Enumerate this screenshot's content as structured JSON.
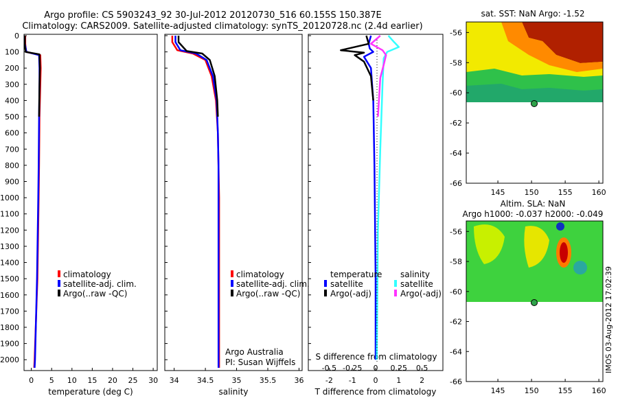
{
  "chart_data": {
    "type": "line",
    "title": "Argo profile: CS 5903243_92 30-Jul-2012 20120730_516 60.155S 150.387E",
    "subtitle": "Climatology: CARS2009. Satellite-adjusted climatology: synTS_20120728.nc (2.4d earlier)",
    "ylabel": "",
    "depth_ticks": [
      0,
      100,
      200,
      300,
      400,
      500,
      600,
      700,
      800,
      900,
      1000,
      1100,
      1200,
      1300,
      1400,
      1500,
      1600,
      1700,
      1800,
      1900,
      2000
    ],
    "ylim": [
      0,
      2050
    ],
    "legend": [
      "climatology",
      "satellite-adj. clim.",
      "Argo(..raw -QC)"
    ],
    "diff_legend": {
      "temp_heading": "temperature",
      "sal_heading": "salinity",
      "t_sat": "satellite",
      "t_argo": "Argo(-adj)",
      "s_sat": "satellite",
      "s_argo": "Argo(-adj)"
    },
    "credits": {
      "org": "Argo Australia",
      "pi": "PI: Susan Wijffels"
    },
    "panels": [
      {
        "xlabel": "temperature (deg C)",
        "xlim": [
          -1.8,
          31
        ],
        "xticks": [
          0,
          5,
          10,
          15,
          20,
          25,
          30
        ],
        "series": [
          {
            "color": "#ff0000",
            "depth": [
              0,
              50,
              100,
              120,
              200,
              300,
              500,
              800,
              1000,
              1500,
              2000,
              2050
            ],
            "values": [
              -1.5,
              -1.5,
              -1.3,
              2.2,
              2.3,
              2.2,
              2.0,
              1.9,
              1.8,
              1.5,
              0.8,
              0.7
            ]
          },
          {
            "color": "#0000ff",
            "depth": [
              0,
              50,
              100,
              120,
              200,
              300,
              500,
              800,
              1000,
              1500,
              2000,
              2050
            ],
            "values": [
              -1.6,
              -1.6,
              -1.2,
              1.9,
              2.0,
              2.0,
              1.9,
              1.8,
              1.7,
              1.4,
              0.9,
              0.8
            ]
          },
          {
            "color": "#000000",
            "depth": [
              0,
              60,
              100,
              115,
              200,
              300,
              500
            ],
            "values": [
              -1.6,
              -1.6,
              -1.4,
              2.0,
              2.1,
              2.0,
              1.9
            ]
          }
        ]
      },
      {
        "xlabel": "salinity",
        "xlim": [
          33.85,
          36.05
        ],
        "xticks": [
          34,
          34.5,
          35,
          35.5,
          36
        ],
        "series": [
          {
            "color": "#ff0000",
            "depth": [
              0,
              40,
              90,
              110,
              150,
              250,
              400,
              600,
              800,
              1000,
              1500,
              2000,
              2050
            ],
            "values": [
              33.97,
              33.97,
              34.05,
              34.3,
              34.5,
              34.6,
              34.67,
              34.7,
              34.71,
              34.72,
              34.72,
              34.72,
              34.72
            ]
          },
          {
            "color": "#0000ff",
            "depth": [
              0,
              40,
              90,
              110,
              150,
              250,
              400,
              600,
              800,
              1000,
              1500,
              2000,
              2050
            ],
            "values": [
              34.02,
              34.02,
              34.1,
              34.35,
              34.52,
              34.62,
              34.68,
              34.7,
              34.71,
              34.71,
              34.71,
              34.71,
              34.71
            ]
          },
          {
            "color": "#000000",
            "depth": [
              0,
              40,
              95,
              110,
              150,
              250,
              400,
              500
            ],
            "values": [
              34.07,
              34.07,
              34.2,
              34.45,
              34.57,
              34.65,
              34.69,
              34.7
            ]
          }
        ]
      },
      {
        "xlabel": "T difference from climatology",
        "x2label": "S difference from climatology",
        "xlim": [
          -2.9,
          2.9
        ],
        "xticks": [
          -2,
          -1,
          0,
          1,
          2
        ],
        "x2ticks": [
          -0.5,
          -0.25,
          0,
          0.25,
          0.5
        ],
        "series": [
          {
            "color": "#0000ff",
            "depth": [
              0,
              50,
              80,
              100,
              130,
              200,
              400,
              800,
              1500,
              2000
            ],
            "values": [
              -0.2,
              -0.3,
              -0.25,
              -0.1,
              -0.5,
              -0.2,
              -0.1,
              -0.05,
              0.0,
              0.0
            ]
          },
          {
            "color": "#000000",
            "depth": [
              0,
              50,
              90,
              105,
              120,
              160,
              250,
              400
            ],
            "values": [
              -0.4,
              -0.3,
              -1.5,
              -0.5,
              -0.9,
              -0.5,
              -0.2,
              -0.1
            ]
          },
          {
            "color": "#33ffff",
            "depth": [
              0,
              40,
              70,
              100,
              140,
              300,
              700,
              1200,
              2000
            ],
            "values": [
              0.55,
              0.8,
              1.0,
              0.5,
              0.35,
              0.3,
              0.2,
              0.1,
              0.05
            ]
          },
          {
            "color": "#ff33ff",
            "depth": [
              0,
              50,
              90,
              120,
              180,
              260,
              500
            ],
            "values": [
              0.2,
              -0.2,
              0.3,
              0.45,
              0.35,
              0.2,
              0.1
            ]
          }
        ]
      }
    ]
  },
  "maps": {
    "sst": {
      "title": "sat. SST: NaN Argo: -1.52",
      "lat_ticks": [
        -56,
        -58,
        -60,
        -62,
        -64,
        -66
      ],
      "lon_ticks": [
        145,
        150,
        155,
        160
      ]
    },
    "sla": {
      "title": "Altim. SLA: NaN",
      "subtitle": "Argo h1000: -0.037 h2000: -0.049",
      "lat_ticks": [
        -56,
        -58,
        -60,
        -62,
        -64,
        -66
      ],
      "lon_ticks": [
        145,
        150,
        155,
        160
      ]
    }
  },
  "footer": {
    "timestamp": "IMOS 03-Aug-2012 17:02:39"
  }
}
